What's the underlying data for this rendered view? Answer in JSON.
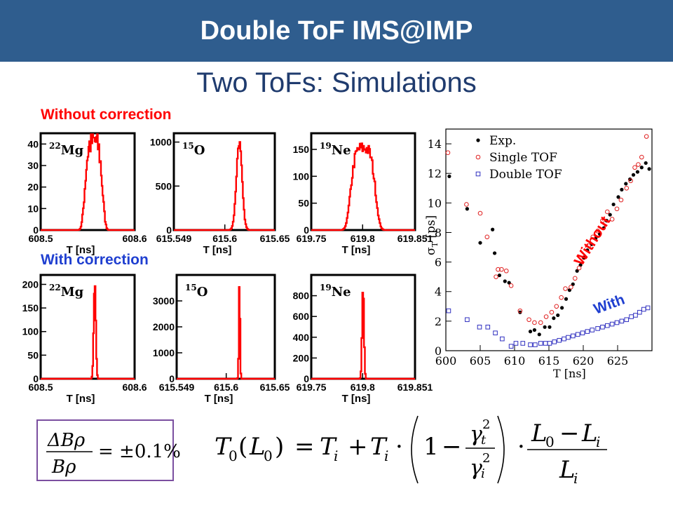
{
  "header": {
    "title": "Double ToF IMS@IMP"
  },
  "subtitle": "Two ToFs:  Simulations",
  "labels": {
    "without_correction": "Without correction",
    "with_correction": "With correction"
  },
  "colors": {
    "header_bg": "#2f5d8e",
    "hist": "#ff0000",
    "without_label": "#ff0000",
    "with_label": "#1f3fd0"
  },
  "chart_data": [
    {
      "type": "histogram",
      "panel": "without",
      "nucleus_mass": "22",
      "nucleus": "Mg",
      "xlabel": "T [ns]",
      "xlim": [
        608.5,
        608.6
      ],
      "xticks": [
        "608.5",
        "608.6"
      ],
      "ylim": [
        0,
        45
      ],
      "yticks": [
        0,
        10,
        20,
        30,
        40
      ],
      "peak_center": 608.556,
      "peak_sigma": 0.0085,
      "peak_height": 41,
      "noise": 0.18,
      "peak_shape": "flat"
    },
    {
      "type": "histogram",
      "panel": "without",
      "nucleus_mass": "15",
      "nucleus": "O",
      "xlabel": "T [ns]",
      "xlim": [
        615.549,
        615.65
      ],
      "xticks": [
        "615.549",
        "615.6",
        "615.65"
      ],
      "ylim": [
        0,
        1100
      ],
      "yticks": [
        0,
        500,
        1000
      ],
      "peak_center": 615.614,
      "peak_sigma": 0.0028,
      "peak_height": 1000,
      "noise": 0.05,
      "peak_shape": "gauss"
    },
    {
      "type": "histogram",
      "panel": "without",
      "nucleus_mass": "19",
      "nucleus": "Ne",
      "xlabel": "T [ns]",
      "xlim": [
        619.75,
        619.851
      ],
      "xticks": [
        "619.75",
        "619.8",
        "619.851"
      ],
      "ylim": [
        0,
        180
      ],
      "yticks": [
        0,
        50,
        100,
        150
      ],
      "peak_center": 619.8,
      "peak_sigma": 0.011,
      "peak_height": 152,
      "noise": 0.08,
      "peak_shape": "flat"
    },
    {
      "type": "histogram",
      "panel": "with",
      "nucleus_mass": "22",
      "nucleus": "Mg",
      "xlabel": "T [ns]",
      "xlim": [
        608.5,
        608.6
      ],
      "xticks": [
        "608.5",
        "608.6"
      ],
      "ylim": [
        0,
        220
      ],
      "yticks": [
        0,
        50,
        100,
        150,
        200
      ],
      "peak_center": 608.5572,
      "peak_sigma": 0.0011,
      "peak_height": 205,
      "noise": 0.03,
      "peak_shape": "gauss"
    },
    {
      "type": "histogram",
      "panel": "with",
      "nucleus_mass": "15",
      "nucleus": "O",
      "xlabel": "T [ns]",
      "xlim": [
        615.549,
        615.65
      ],
      "xticks": [
        "615.549",
        "615.6",
        "615.65"
      ],
      "ylim": [
        0,
        4000
      ],
      "yticks": [
        0,
        1000,
        2000,
        3000
      ],
      "peak_center": 615.6132,
      "peak_sigma": 0.0006,
      "peak_height": 3800,
      "noise": 0.02,
      "peak_shape": "gauss"
    },
    {
      "type": "histogram",
      "panel": "with",
      "nucleus_mass": "19",
      "nucleus": "Ne",
      "xlabel": "T [ns]",
      "xlim": [
        619.75,
        619.851
      ],
      "xticks": [
        "619.75",
        "619.8",
        "619.851"
      ],
      "ylim": [
        0,
        1000
      ],
      "yticks": [
        0,
        200,
        400,
        600,
        800
      ],
      "peak_center": 619.8,
      "peak_sigma": 0.0009,
      "peak_height": 910,
      "noise": 0.03,
      "peak_shape": "gauss"
    },
    {
      "type": "scatter",
      "panel": "sigma",
      "xlabel": "T [ns]",
      "ylabel_symbol": "σ",
      "ylabel_sub": "T",
      "ylabel_unit": " [ps]",
      "xlim": [
        600,
        630
      ],
      "ylim": [
        0,
        15
      ],
      "xticks": [
        600,
        605,
        610,
        615,
        620,
        625
      ],
      "yticks": [
        0,
        2,
        4,
        6,
        8,
        10,
        12,
        14
      ],
      "legend": [
        "Exp.",
        "Single TOF",
        "Double TOF"
      ],
      "legend_position": "top-left",
      "annotations": {
        "without": "Without",
        "with": "With"
      },
      "series": [
        {
          "name": "Exp.",
          "marker": "filled-circle",
          "color": "#000000",
          "x": [
            600.5,
            603.1,
            605,
            606.8,
            607.1,
            607.8,
            608.6,
            609.2,
            610.8,
            612.3,
            612.9,
            613.6,
            614.4,
            615.1,
            615.7,
            616.3,
            616.9,
            617.5,
            618,
            618.5,
            619.1,
            619.6,
            620.1,
            620.6,
            621.2,
            621.8,
            622.4,
            623,
            623.4,
            623.9,
            624.4,
            625.1,
            625.6,
            626.2,
            626.8,
            627.3,
            627.9,
            628.5,
            629.1,
            629.6
          ],
          "y": [
            11.8,
            9.6,
            7.3,
            8.2,
            6.6,
            5.1,
            4.7,
            4.6,
            2.6,
            1.3,
            1.4,
            1.1,
            1.6,
            1.6,
            2.2,
            2.4,
            2.9,
            3.5,
            4.1,
            4.5,
            5.4,
            5.8,
            6.3,
            6.8,
            7.2,
            7.6,
            7.9,
            8.3,
            8.8,
            9.2,
            9.9,
            10.4,
            10.9,
            11.3,
            11.6,
            11.9,
            12.1,
            12.4,
            12.7,
            12.3
          ]
        },
        {
          "name": "Single TOF",
          "marker": "open-circle",
          "color": "#e02020",
          "x": [
            600.3,
            603,
            605,
            606,
            607.3,
            607.6,
            608.1,
            608.8,
            609.5,
            610.8,
            612.1,
            612.9,
            613.8,
            614.6,
            615.4,
            616.1,
            616.8,
            617.4,
            618.2,
            618.8,
            619.4,
            620.1,
            620.8,
            621.4,
            622.1,
            622.8,
            623.5,
            624.2,
            624.9,
            625.5,
            626.3,
            626.9,
            627.5,
            628,
            628.5,
            629.2
          ],
          "y": [
            13.4,
            9.9,
            9.3,
            7.7,
            5.0,
            5.5,
            5.5,
            5.4,
            4.4,
            2.7,
            2.1,
            1.9,
            1.9,
            2.3,
            2.6,
            3.0,
            3.6,
            4.2,
            4.3,
            4.9,
            5.6,
            6.3,
            7.1,
            7.7,
            8.1,
            8.8,
            9.4,
            8.9,
            9.6,
            10.2,
            11.0,
            11.5,
            12.4,
            12.6,
            13.1,
            14.5
          ]
        },
        {
          "name": "Double TOF",
          "marker": "open-square",
          "color": "#3030c0",
          "x": [
            600.4,
            603.1,
            604.9,
            606.1,
            607.2,
            608.2,
            609.5,
            610.2,
            611.2,
            612.3,
            613,
            613.8,
            614.5,
            615.1,
            615.8,
            616.5,
            617.2,
            617.8,
            618.5,
            619.2,
            619.9,
            620.6,
            621.3,
            622.1,
            622.8,
            623.5,
            624.2,
            624.9,
            625.6,
            626.3,
            627,
            627.6,
            628.2,
            628.8,
            629.4
          ],
          "y": [
            2.7,
            2.1,
            1.6,
            1.6,
            1.2,
            0.8,
            0.3,
            0.5,
            0.5,
            0.4,
            0.4,
            0.5,
            0.5,
            0.5,
            0.6,
            0.7,
            0.8,
            0.9,
            1.0,
            1.1,
            1.2,
            1.3,
            1.4,
            1.5,
            1.6,
            1.7,
            1.8,
            1.9,
            2.0,
            2.1,
            2.3,
            2.4,
            2.6,
            2.8,
            2.9
          ]
        }
      ]
    }
  ]
}
